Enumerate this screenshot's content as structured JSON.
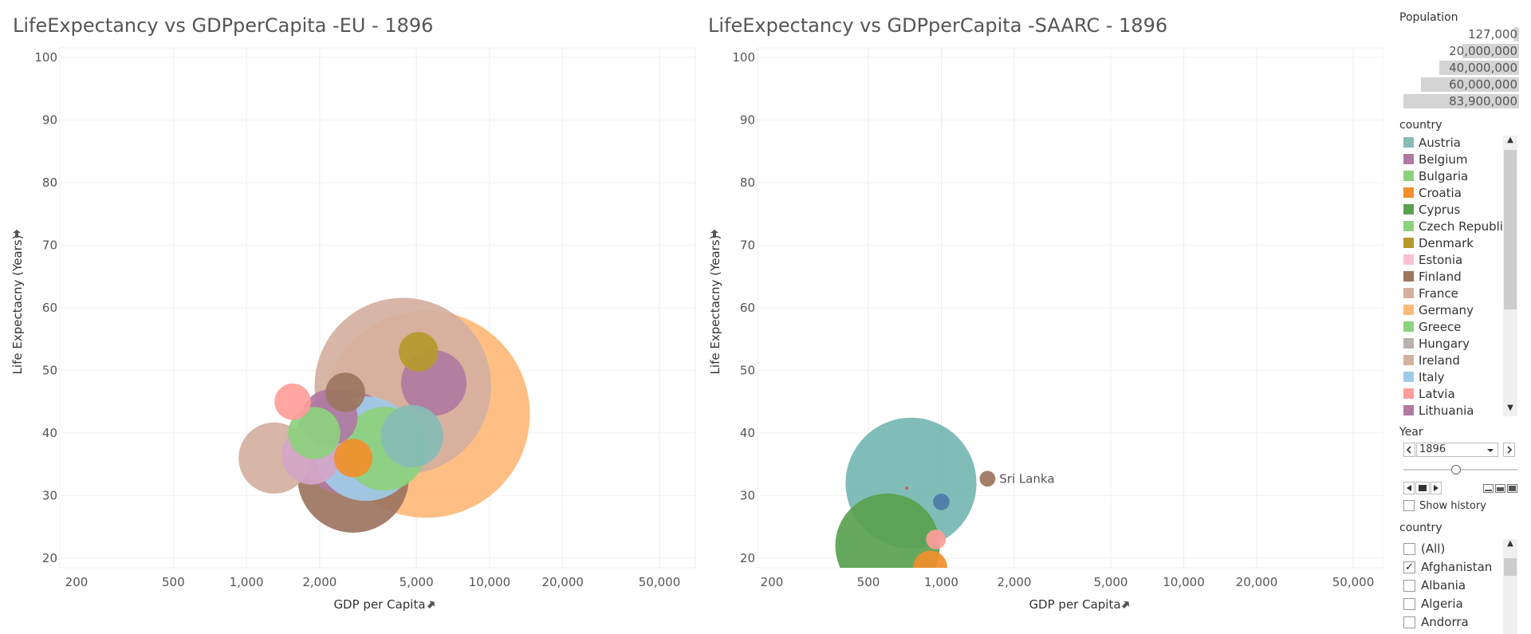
{
  "charts": [
    {
      "title": "LifeExpectancy vs GDPperCapita -EU - 1896",
      "xlabel": "GDP per Capita",
      "ylabel": "Life Expectacny (Years)"
    },
    {
      "title": "LifeExpectancy vs GDPperCapita -SAARC - 1896",
      "xlabel": "GDP per Capita",
      "ylabel": "Life Expectacny (Years)"
    }
  ],
  "chart_data": [
    {
      "type": "scatter",
      "subtype": "bubble",
      "title": "LifeExpectancy vs GDPperCapita -EU - 1896",
      "xlabel": "GDP per Capita",
      "ylabel": "Life Expectacny (Years)",
      "x_scale": "log",
      "xlim": [
        170,
        70000
      ],
      "ylim": [
        18,
        102
      ],
      "x_ticks": [
        200,
        500,
        1000,
        2000,
        5000,
        10000,
        20000,
        50000
      ],
      "x_tick_labels": [
        "200",
        "500",
        "1,000",
        "2,000",
        "5,000",
        "10,000",
        "20,000",
        "50,000"
      ],
      "y_ticks": [
        20,
        30,
        40,
        50,
        60,
        70,
        80,
        90,
        100
      ],
      "y_tick_labels": [
        "20",
        "30",
        "40",
        "50",
        "60",
        "70",
        "80",
        "90",
        "100"
      ],
      "grid": true,
      "points": [
        {
          "x": 5500,
          "y": 43,
          "size": 55000000,
          "color": "#FFBA79"
        },
        {
          "x": 4400,
          "y": 47.5,
          "size": 40000000,
          "color": "#D4B0A0"
        },
        {
          "x": 2750,
          "y": 33,
          "size": 16000000,
          "color": "#9C755F"
        },
        {
          "x": 2600,
          "y": 38.5,
          "size": 14000000,
          "color": "#B07AA1"
        },
        {
          "x": 3100,
          "y": 37.5,
          "size": 14000000,
          "color": "#A0CBE8"
        },
        {
          "x": 3700,
          "y": 37.5,
          "size": 9000000,
          "color": "#8CD17D"
        },
        {
          "x": 1300,
          "y": 36,
          "size": 6500000,
          "color": "#D4B0A0"
        },
        {
          "x": 1850,
          "y": 36.5,
          "size": 4500000,
          "color": "#D4A6C8"
        },
        {
          "x": 2200,
          "y": 42.5,
          "size": 4000000,
          "color": "#B07AA1"
        },
        {
          "x": 4800,
          "y": 39.5,
          "size": 5000000,
          "color": "#86BCB6"
        },
        {
          "x": 5900,
          "y": 48,
          "size": 5500000,
          "color": "#B07AA1"
        },
        {
          "x": 1900,
          "y": 40,
          "size": 3500000,
          "color": "#8CD17D"
        },
        {
          "x": 2550,
          "y": 46.5,
          "size": 2000000,
          "color": "#9C755F"
        },
        {
          "x": 5100,
          "y": 53,
          "size": 2000000,
          "color": "#B6992D"
        },
        {
          "x": 1550,
          "y": 45,
          "size": 1700000,
          "color": "#FF9D9A"
        },
        {
          "x": 2750,
          "y": 36,
          "size": 1900000,
          "color": "#F28E2B"
        }
      ]
    },
    {
      "type": "scatter",
      "subtype": "bubble",
      "title": "LifeExpectancy vs GDPperCapita -SAARC - 1896",
      "xlabel": "GDP per Capita",
      "ylabel": "Life Expectacny (Years)",
      "x_scale": "log",
      "xlim": [
        170,
        70000
      ],
      "ylim": [
        18,
        102
      ],
      "x_ticks": [
        200,
        500,
        1000,
        2000,
        5000,
        10000,
        20000,
        50000
      ],
      "x_tick_labels": [
        "200",
        "500",
        "1,000",
        "2,000",
        "5,000",
        "10,000",
        "20,000",
        "50,000"
      ],
      "y_ticks": [
        20,
        30,
        40,
        50,
        60,
        70,
        80,
        90,
        100
      ],
      "y_tick_labels": [
        "20",
        "30",
        "40",
        "50",
        "60",
        "70",
        "80",
        "90",
        "100"
      ],
      "grid": true,
      "points": [
        {
          "x": 600,
          "y": 22,
          "size": 14000000,
          "color": "#59A14F"
        },
        {
          "x": 950,
          "y": 23,
          "size": 500000,
          "color": "#FF9D9A"
        },
        {
          "x": 750,
          "y": 32,
          "size": 22000000,
          "color": "#76B7B2"
        },
        {
          "x": 900,
          "y": 18.5,
          "size": 1500000,
          "color": "#F28E2B"
        },
        {
          "x": 1000,
          "y": 29,
          "size": 350000,
          "color": "#4E79A7"
        },
        {
          "x": 720,
          "y": 31.2,
          "size": 15000,
          "color": "#E15759"
        },
        {
          "x": 1550,
          "y": 32.7,
          "size": 320000,
          "color": "#9C755F",
          "label": "Sri Lanka"
        }
      ]
    }
  ],
  "size_legend": {
    "title": "Population",
    "entries": [
      {
        "label": "127,000",
        "value": 127000
      },
      {
        "label": "20,000,000",
        "value": 20000000
      },
      {
        "label": "40,000,000",
        "value": 40000000
      },
      {
        "label": "60,000,000",
        "value": 60000000
      },
      {
        "label": "83,900,000",
        "value": 83900000
      }
    ]
  },
  "color_legend": {
    "title": "country",
    "items": [
      {
        "label": "Austria",
        "color": "#86BCB6"
      },
      {
        "label": "Belgium",
        "color": "#B07AA1"
      },
      {
        "label": "Bulgaria",
        "color": "#8CD17D"
      },
      {
        "label": "Croatia",
        "color": "#F28E2B"
      },
      {
        "label": "Cyprus",
        "color": "#59A14F"
      },
      {
        "label": "Czech Republic",
        "color": "#8CD17D"
      },
      {
        "label": "Denmark",
        "color": "#B6992D"
      },
      {
        "label": "Estonia",
        "color": "#FABFD2"
      },
      {
        "label": "Finland",
        "color": "#9C755F"
      },
      {
        "label": "France",
        "color": "#D4B0A0"
      },
      {
        "label": "Germany",
        "color": "#FFBA79"
      },
      {
        "label": "Greece",
        "color": "#8CD17D"
      },
      {
        "label": "Hungary",
        "color": "#BAB0AC"
      },
      {
        "label": "Ireland",
        "color": "#D4B0A0"
      },
      {
        "label": "Italy",
        "color": "#A0CBE8"
      },
      {
        "label": "Latvia",
        "color": "#FF9D9A"
      },
      {
        "label": "Lithuania",
        "color": "#B07AA1"
      }
    ]
  },
  "year_filter": {
    "title": "Year",
    "value": "1896",
    "show_history_label": "Show history",
    "show_history": false,
    "slider_fraction": 0.45
  },
  "country_filter": {
    "title": "country",
    "items": [
      {
        "label": "(All)",
        "checked": false
      },
      {
        "label": "Afghanistan",
        "checked": true
      },
      {
        "label": "Albania",
        "checked": false
      },
      {
        "label": "Algeria",
        "checked": false
      },
      {
        "label": "Andorra",
        "checked": false
      }
    ]
  },
  "icons": {
    "pin": "pin-icon",
    "prev": "chevron-left-icon",
    "next": "chevron-right-icon",
    "dropdown": "chevron-down-icon",
    "scroll_up": "chevron-up-icon",
    "scroll_down": "chevron-down-icon",
    "check": "✓"
  }
}
